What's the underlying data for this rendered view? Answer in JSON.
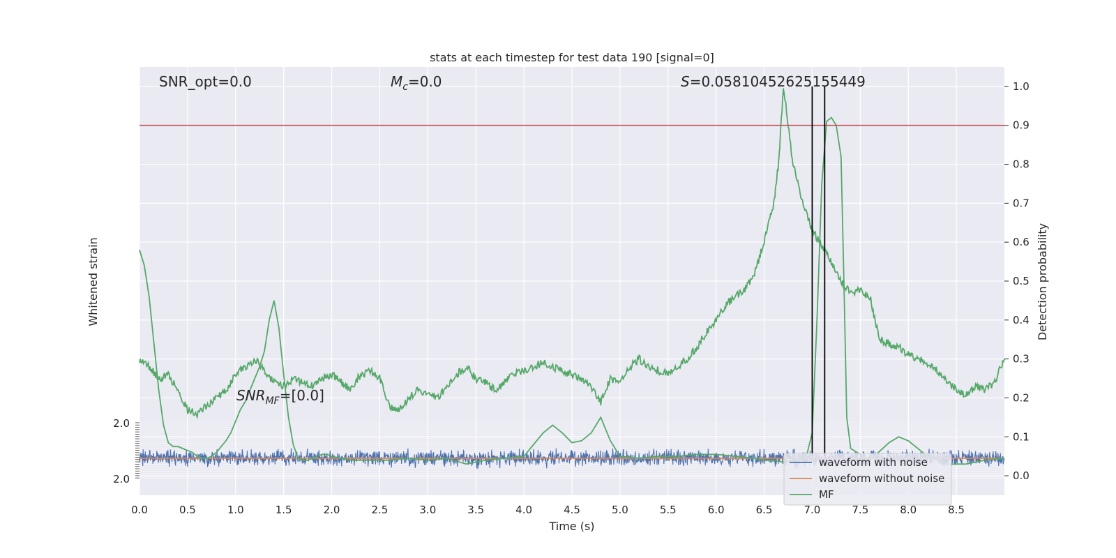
{
  "chart_data": {
    "type": "line",
    "title": "stats at each timestep for test data 190 [signal=0]",
    "xlabel": "Time (s)",
    "ylabel_left": "Whitened strain",
    "ylabel_right": "Detection probability",
    "xlim": [
      0.0,
      9.0
    ],
    "ylim_right": [
      -0.05,
      1.05
    ],
    "x_ticks": [
      "0.0",
      "0.5",
      "1.0",
      "1.5",
      "2.0",
      "2.5",
      "3.0",
      "3.5",
      "4.0",
      "4.5",
      "5.0",
      "5.5",
      "6.0",
      "6.5",
      "7.0",
      "7.5",
      "8.0",
      "8.5"
    ],
    "right_ticks": [
      "0.0",
      "0.1",
      "0.2",
      "0.3",
      "0.4",
      "0.5",
      "0.6",
      "0.7",
      "0.8",
      "0.9",
      "1.0"
    ],
    "left_tick_top": "2.0",
    "left_tick_bottom": "2.0",
    "grid": true,
    "legend_placement": "lower-right",
    "annotations": {
      "snr_opt": "SNR_opt=0.0",
      "mc_sym": "M",
      "mc_sub": "c",
      "mc_val": "=0.0",
      "s_sym": "S",
      "s_val": "=0.05810452625155449",
      "snrmf_sym": "SNR",
      "snrmf_sub": "MF",
      "snrmf_val": "=[0.0]"
    },
    "threshold": {
      "value": 0.9,
      "color": "#c44e52"
    },
    "vlines": [
      7.0,
      7.13
    ],
    "series": [
      {
        "name": "waveform with noise",
        "color": "#4c72b0",
        "center": 0.045,
        "amplitude": 0.03
      },
      {
        "name": "waveform without noise",
        "color": "#dd8452",
        "value": 0.045
      },
      {
        "name": "MF",
        "color": "#55a868",
        "x": [
          0.0,
          0.05,
          0.1,
          0.15,
          0.2,
          0.25,
          0.3,
          0.35,
          0.4,
          0.45,
          0.5,
          0.55,
          0.6,
          0.65,
          0.7,
          0.75,
          0.8,
          0.85,
          0.9,
          0.95,
          1.0,
          1.05,
          1.1,
          1.15,
          1.2,
          1.25,
          1.3,
          1.35,
          1.4,
          1.45,
          1.5,
          1.55,
          1.6,
          1.65,
          1.7,
          1.75,
          1.8,
          1.85,
          1.9,
          1.95,
          2.0,
          2.2,
          2.4,
          2.6,
          2.8,
          3.0,
          3.2,
          3.4,
          3.6,
          3.8,
          4.0,
          4.1,
          4.2,
          4.3,
          4.4,
          4.5,
          4.6,
          4.7,
          4.8,
          4.9,
          5.0,
          5.2,
          5.4,
          5.6,
          5.8,
          6.0,
          6.2,
          6.4,
          6.5,
          6.6,
          6.7,
          6.8,
          6.9,
          6.95,
          7.0,
          7.05,
          7.1,
          7.15,
          7.2,
          7.25,
          7.3,
          7.33,
          7.36,
          7.4,
          7.6,
          7.8,
          7.9,
          8.0,
          8.2,
          8.4,
          8.6,
          8.8,
          9.0
        ],
        "y": [
          0.58,
          0.54,
          0.46,
          0.34,
          0.22,
          0.13,
          0.085,
          0.075,
          0.075,
          0.07,
          0.065,
          0.06,
          0.05,
          0.045,
          0.045,
          0.05,
          0.06,
          0.075,
          0.09,
          0.11,
          0.14,
          0.17,
          0.19,
          0.22,
          0.25,
          0.28,
          0.32,
          0.4,
          0.45,
          0.38,
          0.26,
          0.15,
          0.08,
          0.045,
          0.04,
          0.04,
          0.045,
          0.05,
          0.055,
          0.055,
          0.05,
          0.04,
          0.04,
          0.04,
          0.045,
          0.04,
          0.045,
          0.03,
          0.04,
          0.045,
          0.05,
          0.08,
          0.11,
          0.13,
          0.11,
          0.085,
          0.09,
          0.11,
          0.15,
          0.09,
          0.05,
          0.045,
          0.05,
          0.05,
          0.055,
          0.055,
          0.05,
          0.045,
          0.04,
          0.04,
          0.035,
          0.04,
          0.045,
          0.06,
          0.11,
          0.4,
          0.75,
          0.91,
          0.92,
          0.9,
          0.82,
          0.5,
          0.15,
          0.07,
          0.04,
          0.085,
          0.1,
          0.09,
          0.05,
          0.03,
          0.03,
          0.04,
          0.045
        ]
      },
      {
        "name": "Detection probability",
        "color": "#55a868",
        "x": [
          0.0,
          0.1,
          0.2,
          0.3,
          0.4,
          0.5,
          0.6,
          0.7,
          0.8,
          0.9,
          1.0,
          1.1,
          1.2,
          1.3,
          1.4,
          1.5,
          1.6,
          1.7,
          1.8,
          1.9,
          2.0,
          2.1,
          2.2,
          2.3,
          2.4,
          2.5,
          2.6,
          2.7,
          2.8,
          2.9,
          3.0,
          3.1,
          3.2,
          3.3,
          3.4,
          3.5,
          3.6,
          3.7,
          3.8,
          3.9,
          4.0,
          4.1,
          4.2,
          4.3,
          4.4,
          4.5,
          4.6,
          4.7,
          4.8,
          4.9,
          5.0,
          5.1,
          5.2,
          5.3,
          5.4,
          5.5,
          5.6,
          5.7,
          5.8,
          5.9,
          6.0,
          6.1,
          6.2,
          6.3,
          6.4,
          6.5,
          6.6,
          6.65,
          6.7,
          6.8,
          6.9,
          7.0,
          7.1,
          7.2,
          7.3,
          7.4,
          7.5,
          7.6,
          7.7,
          7.8,
          7.9,
          8.0,
          8.1,
          8.2,
          8.3,
          8.4,
          8.5,
          8.6,
          8.7,
          8.8,
          8.9,
          9.0
        ],
        "y": [
          0.3,
          0.28,
          0.25,
          0.26,
          0.22,
          0.17,
          0.16,
          0.18,
          0.2,
          0.22,
          0.26,
          0.28,
          0.3,
          0.27,
          0.24,
          0.23,
          0.25,
          0.24,
          0.23,
          0.25,
          0.26,
          0.24,
          0.22,
          0.26,
          0.27,
          0.25,
          0.18,
          0.17,
          0.2,
          0.22,
          0.21,
          0.2,
          0.23,
          0.26,
          0.28,
          0.25,
          0.24,
          0.22,
          0.24,
          0.26,
          0.27,
          0.28,
          0.29,
          0.28,
          0.27,
          0.26,
          0.25,
          0.23,
          0.19,
          0.25,
          0.24,
          0.28,
          0.3,
          0.28,
          0.27,
          0.26,
          0.28,
          0.3,
          0.33,
          0.37,
          0.4,
          0.44,
          0.46,
          0.48,
          0.52,
          0.6,
          0.7,
          0.8,
          1.0,
          0.8,
          0.7,
          0.63,
          0.59,
          0.55,
          0.5,
          0.47,
          0.48,
          0.46,
          0.35,
          0.34,
          0.33,
          0.31,
          0.3,
          0.29,
          0.27,
          0.24,
          0.22,
          0.21,
          0.23,
          0.22,
          0.24,
          0.3
        ]
      }
    ]
  }
}
